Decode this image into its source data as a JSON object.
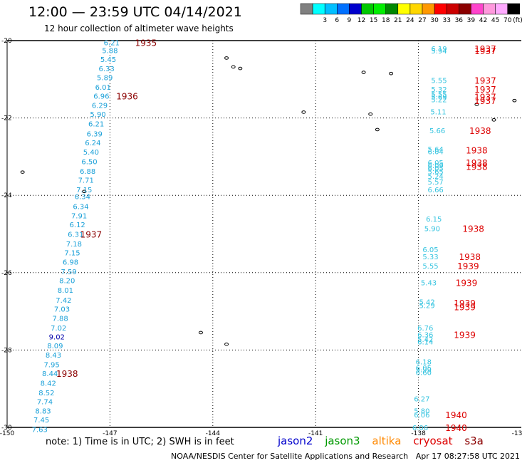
{
  "header": {
    "title": "12:00 — 23:59 UTC 04/14/2021",
    "subtitle": "12 hour collection of altimeter wave heights"
  },
  "colorbar": {
    "unit": "(ft)",
    "bins": [
      {
        "color": "#808080",
        "label": ""
      },
      {
        "color": "#00ffff",
        "label": "3"
      },
      {
        "color": "#00bfff",
        "label": "6"
      },
      {
        "color": "#0070ff",
        "label": "9"
      },
      {
        "color": "#0000cd",
        "label": "12"
      },
      {
        "color": "#00c800",
        "label": "15"
      },
      {
        "color": "#00ee00",
        "label": "18"
      },
      {
        "color": "#008800",
        "label": "21"
      },
      {
        "color": "#ffff00",
        "label": "24"
      },
      {
        "color": "#ffd700",
        "label": "27"
      },
      {
        "color": "#ff9900",
        "label": "30"
      },
      {
        "color": "#ff0000",
        "label": "33"
      },
      {
        "color": "#cc0000",
        "label": "36"
      },
      {
        "color": "#8b0000",
        "label": "39"
      },
      {
        "color": "#ff44cc",
        "label": "42"
      },
      {
        "color": "#ff99dd",
        "label": "45"
      },
      {
        "color": "#ffaaff",
        "label": "70"
      },
      {
        "color": "#000000",
        "label": ""
      }
    ]
  },
  "axes": {
    "lon_labels": [
      "-150",
      "-147",
      "-144",
      "-141",
      "-138",
      "-13"
    ],
    "lat_labels": [
      "-20",
      "-22",
      "-24",
      "-26",
      "-28",
      "-30"
    ]
  },
  "tracks": [
    {
      "name": "left-track",
      "color": "#1aa0d8",
      "points": [
        {
          "lat": -20.05,
          "lon": -146.95,
          "v": "6.21"
        },
        {
          "lat": -20.25,
          "lon": -147.0,
          "v": "5.88"
        },
        {
          "lat": -20.48,
          "lon": -147.05,
          "v": "5.45"
        },
        {
          "lat": -20.72,
          "lon": -147.1,
          "v": "6.33"
        },
        {
          "lat": -20.95,
          "lon": -147.15,
          "v": "5.89"
        },
        {
          "lat": -21.2,
          "lon": -147.2,
          "v": "6.01"
        },
        {
          "lat": -21.43,
          "lon": -147.25,
          "v": "6.96"
        },
        {
          "lat": -21.67,
          "lon": -147.3,
          "v": "6.29"
        },
        {
          "lat": -21.9,
          "lon": -147.35,
          "v": "5.90"
        },
        {
          "lat": -22.15,
          "lon": -147.4,
          "v": "6.21"
        },
        {
          "lat": -22.4,
          "lon": -147.45,
          "v": "6.39"
        },
        {
          "lat": -22.63,
          "lon": -147.5,
          "v": "6.24"
        },
        {
          "lat": -22.87,
          "lon": -147.55,
          "v": "5.40"
        },
        {
          "lat": -23.12,
          "lon": -147.6,
          "v": "6.50"
        },
        {
          "lat": -23.37,
          "lon": -147.65,
          "v": "6.88"
        },
        {
          "lat": -23.6,
          "lon": -147.7,
          "v": "7.71"
        },
        {
          "lat": -23.85,
          "lon": -147.75,
          "v": "7.15"
        },
        {
          "lat": -24.02,
          "lon": -147.8,
          "v": "6.34"
        },
        {
          "lat": -24.28,
          "lon": -147.85,
          "v": "6.34"
        },
        {
          "lat": -24.52,
          "lon": -147.9,
          "v": "7.91"
        },
        {
          "lat": -24.75,
          "lon": -147.95,
          "v": "6.12"
        },
        {
          "lat": -25.0,
          "lon": -148.0,
          "v": "6.31"
        },
        {
          "lat": -25.25,
          "lon": -148.05,
          "v": "7.18"
        },
        {
          "lat": -25.48,
          "lon": -148.1,
          "v": "7.15"
        },
        {
          "lat": -25.72,
          "lon": -148.15,
          "v": "6.98"
        },
        {
          "lat": -25.97,
          "lon": -148.2,
          "v": "7.59"
        },
        {
          "lat": -26.2,
          "lon": -148.25,
          "v": "8.20"
        },
        {
          "lat": -26.45,
          "lon": -148.3,
          "v": "8.01"
        },
        {
          "lat": -26.7,
          "lon": -148.35,
          "v": "7.42"
        },
        {
          "lat": -26.93,
          "lon": -148.4,
          "v": "7.03"
        },
        {
          "lat": -27.17,
          "lon": -148.45,
          "v": "7.88"
        },
        {
          "lat": -27.42,
          "lon": -148.5,
          "v": "7.02"
        },
        {
          "lat": -27.65,
          "lon": -148.55,
          "v": "9.02",
          "dark": true
        },
        {
          "lat": -27.88,
          "lon": -148.6,
          "v": "8.09"
        },
        {
          "lat": -28.12,
          "lon": -148.65,
          "v": "8.43"
        },
        {
          "lat": -28.37,
          "lon": -148.7,
          "v": "7.95"
        },
        {
          "lat": -28.6,
          "lon": -148.75,
          "v": "8.44"
        },
        {
          "lat": -28.85,
          "lon": -148.8,
          "v": "8.42"
        },
        {
          "lat": -29.1,
          "lon": -148.85,
          "v": "8.52"
        },
        {
          "lat": -29.33,
          "lon": -148.9,
          "v": "7.74"
        },
        {
          "lat": -29.57,
          "lon": -148.95,
          "v": "8.83"
        },
        {
          "lat": -29.8,
          "lon": -149.0,
          "v": "7.45"
        },
        {
          "lat": -30.05,
          "lon": -149.05,
          "v": "7.63"
        }
      ]
    },
    {
      "name": "right-track",
      "color": "#35c4e0",
      "points": [
        {
          "lat": -20.2,
          "lon": -137.4,
          "v": "6.19"
        },
        {
          "lat": -20.26,
          "lon": -137.4,
          "v": "5.94"
        },
        {
          "lat": -21.02,
          "lon": -137.4,
          "v": "5.55"
        },
        {
          "lat": -21.25,
          "lon": -137.4,
          "v": "5.32"
        },
        {
          "lat": -21.38,
          "lon": -137.4,
          "v": "5.55"
        },
        {
          "lat": -21.45,
          "lon": -137.4,
          "v": "5.69"
        },
        {
          "lat": -21.52,
          "lon": -137.4,
          "v": "5.22"
        },
        {
          "lat": -21.83,
          "lon": -137.42,
          "v": "5.11"
        },
        {
          "lat": -22.32,
          "lon": -137.45,
          "v": "5.66"
        },
        {
          "lat": -22.8,
          "lon": -137.5,
          "v": "5.64"
        },
        {
          "lat": -22.86,
          "lon": -137.5,
          "v": "6.04"
        },
        {
          "lat": -23.15,
          "lon": -137.5,
          "v": "6.05"
        },
        {
          "lat": -23.22,
          "lon": -137.5,
          "v": "6.09"
        },
        {
          "lat": -23.3,
          "lon": -137.5,
          "v": "6.05"
        },
        {
          "lat": -23.38,
          "lon": -137.5,
          "v": "5.65"
        },
        {
          "lat": -23.5,
          "lon": -137.5,
          "v": "5.24"
        },
        {
          "lat": -23.65,
          "lon": -137.5,
          "v": "5.57"
        },
        {
          "lat": -23.85,
          "lon": -137.5,
          "v": "6.66"
        },
        {
          "lat": -24.6,
          "lon": -137.55,
          "v": "6.15"
        },
        {
          "lat": -24.85,
          "lon": -137.6,
          "v": "5.90"
        },
        {
          "lat": -25.4,
          "lon": -137.65,
          "v": "6.05"
        },
        {
          "lat": -25.58,
          "lon": -137.65,
          "v": "5.33"
        },
        {
          "lat": -25.82,
          "lon": -137.65,
          "v": "5.55"
        },
        {
          "lat": -26.25,
          "lon": -137.7,
          "v": "5.43"
        },
        {
          "lat": -26.75,
          "lon": -137.75,
          "v": "5.42"
        },
        {
          "lat": -26.84,
          "lon": -137.75,
          "v": "5.29"
        },
        {
          "lat": -27.42,
          "lon": -137.8,
          "v": "6.76"
        },
        {
          "lat": -27.6,
          "lon": -137.8,
          "v": "6.36"
        },
        {
          "lat": -27.72,
          "lon": -137.8,
          "v": "5.42"
        },
        {
          "lat": -27.78,
          "lon": -137.8,
          "v": "6.14"
        },
        {
          "lat": -28.3,
          "lon": -137.85,
          "v": "6.18"
        },
        {
          "lat": -28.45,
          "lon": -137.85,
          "v": "6.05"
        },
        {
          "lat": -28.5,
          "lon": -137.85,
          "v": "5.99"
        },
        {
          "lat": -28.57,
          "lon": -137.85,
          "v": "6.60"
        },
        {
          "lat": -29.25,
          "lon": -137.9,
          "v": "6.27"
        },
        {
          "lat": -29.57,
          "lon": -137.9,
          "v": "5.80"
        },
        {
          "lat": -29.67,
          "lon": -137.9,
          "v": "6.06"
        },
        {
          "lat": -30.0,
          "lon": -137.95,
          "v": "6.06"
        }
      ]
    }
  ],
  "time_labels": [
    {
      "lat": -20.05,
      "lon": -145.95,
      "t": "1935",
      "color": "#8b0000"
    },
    {
      "lat": -21.43,
      "lon": -146.5,
      "t": "1936",
      "color": "#8b0000"
    },
    {
      "lat": -25.0,
      "lon": -147.55,
      "t": "1937",
      "color": "#8b0000"
    },
    {
      "lat": -28.6,
      "lon": -148.25,
      "t": "1938",
      "color": "#8b0000"
    },
    {
      "lat": -20.2,
      "lon": -136.05,
      "t": "1937",
      "color": "#dd0000"
    },
    {
      "lat": -20.26,
      "lon": -136.05,
      "t": "1937",
      "color": "#dd0000"
    },
    {
      "lat": -21.02,
      "lon": -136.05,
      "t": "1937",
      "color": "#dd0000"
    },
    {
      "lat": -21.25,
      "lon": -136.05,
      "t": "1937",
      "color": "#dd0000"
    },
    {
      "lat": -21.45,
      "lon": -136.05,
      "t": "1937",
      "color": "#dd0000"
    },
    {
      "lat": -21.55,
      "lon": -136.05,
      "t": "1937",
      "color": "#dd0000"
    },
    {
      "lat": -22.32,
      "lon": -136.2,
      "t": "1938",
      "color": "#dd0000"
    },
    {
      "lat": -22.83,
      "lon": -136.3,
      "t": "1938",
      "color": "#dd0000"
    },
    {
      "lat": -23.15,
      "lon": -136.3,
      "t": "1938",
      "color": "#dd0000"
    },
    {
      "lat": -23.25,
      "lon": -136.3,
      "t": "1938",
      "color": "#dd0000"
    },
    {
      "lat": -24.85,
      "lon": -136.4,
      "t": "1938",
      "color": "#dd0000"
    },
    {
      "lat": -25.58,
      "lon": -136.5,
      "t": "1938",
      "color": "#dd0000"
    },
    {
      "lat": -25.82,
      "lon": -136.55,
      "t": "1939",
      "color": "#dd0000"
    },
    {
      "lat": -26.25,
      "lon": -136.6,
      "t": "1939",
      "color": "#dd0000"
    },
    {
      "lat": -26.78,
      "lon": -136.65,
      "t": "1939",
      "color": "#dd0000"
    },
    {
      "lat": -26.88,
      "lon": -136.65,
      "t": "1939",
      "color": "#dd0000"
    },
    {
      "lat": -27.6,
      "lon": -136.65,
      "t": "1939",
      "color": "#dd0000"
    },
    {
      "lat": -29.67,
      "lon": -136.9,
      "t": "1940",
      "color": "#dd0000"
    },
    {
      "lat": -30.0,
      "lon": -136.9,
      "t": "1940",
      "color": "#dd0000"
    }
  ],
  "islands": [
    {
      "lat": -20.45,
      "lon": -143.6
    },
    {
      "lat": -20.68,
      "lon": -143.4
    },
    {
      "lat": -20.72,
      "lon": -143.2
    },
    {
      "lat": -20.82,
      "lon": -139.6
    },
    {
      "lat": -20.85,
      "lon": -138.8
    },
    {
      "lat": -21.65,
      "lon": -136.3
    },
    {
      "lat": -21.55,
      "lon": -135.2
    },
    {
      "lat": -21.85,
      "lon": -141.35
    },
    {
      "lat": -21.9,
      "lon": -139.4
    },
    {
      "lat": -22.05,
      "lon": -135.8
    },
    {
      "lat": -22.3,
      "lon": -139.2
    },
    {
      "lat": -23.4,
      "lon": -149.55
    },
    {
      "lat": -23.9,
      "lon": -147.75
    },
    {
      "lat": -27.55,
      "lon": -144.35
    },
    {
      "lat": -27.85,
      "lon": -143.6
    }
  ],
  "note": "note:  1) Time is in UTC;  2) SWH is in feet",
  "legend": [
    {
      "label": "jason2",
      "color": "#0000cc"
    },
    {
      "label": "jason3",
      "color": "#009900"
    },
    {
      "label": "altika",
      "color": "#ff8800"
    },
    {
      "label": "cryosat",
      "color": "#dd0000"
    },
    {
      "label": "s3a",
      "color": "#8b0000"
    }
  ],
  "footer": {
    "credit": "NOAA/NESDIS Center for Satellite Applications and Research",
    "timestamp": "Apr 17 08:27:58 UTC 2021"
  }
}
